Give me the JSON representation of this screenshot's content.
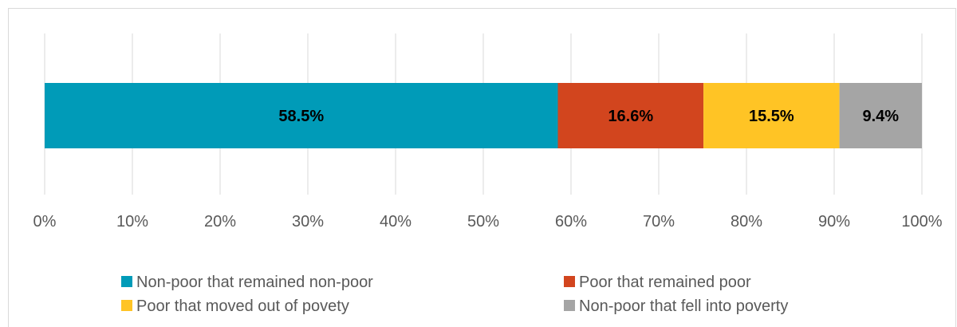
{
  "chart_data": {
    "type": "bar",
    "orientation": "horizontal",
    "stacked": true,
    "xlim": [
      0,
      100
    ],
    "x_ticks": [
      "0%",
      "10%",
      "20%",
      "30%",
      "40%",
      "50%",
      "60%",
      "70%",
      "80%",
      "90%",
      "100%"
    ],
    "grid": "vertical",
    "legend_position": "bottom",
    "series": [
      {
        "name": "Non-poor that remained non-poor",
        "value": 58.5,
        "label": "58.5%",
        "color": "#009bb8"
      },
      {
        "name": "Poor that remained poor",
        "value": 16.6,
        "label": "16.6%",
        "color": "#d2451e"
      },
      {
        "name": "Poor that moved out of povety",
        "value": 15.5,
        "label": "15.5%",
        "color": "#ffc425"
      },
      {
        "name": "Non-poor that fell into poverty",
        "value": 9.4,
        "label": "9.4%",
        "color": "#a5a5a5"
      }
    ]
  }
}
